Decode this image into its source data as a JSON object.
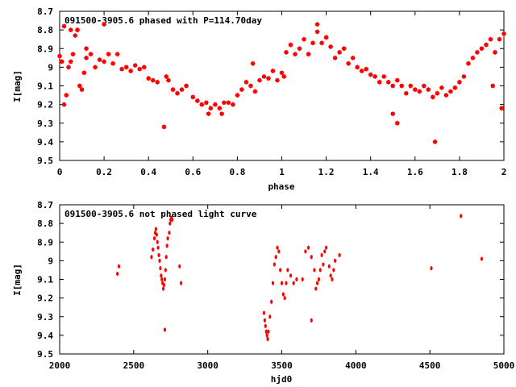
{
  "chart_data": [
    {
      "type": "scatter",
      "title": "091500-3905.6 phased with P=114.70day",
      "xlabel": "phase",
      "ylabel": "I[mag]",
      "xlim": [
        0,
        2
      ],
      "ylim": [
        8.7,
        9.5
      ],
      "y_inverted": true,
      "xticks": [
        0,
        0.2,
        0.4,
        0.6,
        0.8,
        1,
        1.2,
        1.4,
        1.6,
        1.8,
        2
      ],
      "yticks": [
        8.7,
        8.8,
        8.9,
        9,
        9.1,
        9.2,
        9.3,
        9.4,
        9.5
      ],
      "marker_color": "#ff0000",
      "series": [
        {
          "x": [
            0.0,
            0.01,
            0.02,
            0.03,
            0.04,
            0.05,
            0.06,
            0.07,
            0.08,
            0.09,
            0.1,
            0.11,
            0.12,
            0.14,
            0.16,
            0.18,
            0.2,
            0.22,
            0.24,
            0.26,
            0.28,
            0.3,
            0.32,
            0.34,
            0.36,
            0.38,
            0.4,
            0.42,
            0.44,
            0.47,
            0.49,
            0.51,
            0.53,
            0.55,
            0.57,
            0.6,
            0.62,
            0.64,
            0.66,
            0.68,
            0.7,
            0.72,
            0.74,
            0.76,
            0.78,
            0.8,
            0.82,
            0.84,
            0.86,
            0.88,
            0.9,
            0.92,
            0.94,
            0.96,
            0.98,
            1.0,
            1.02,
            1.04,
            1.06,
            1.08,
            1.1,
            1.12,
            1.14,
            1.16,
            1.18,
            1.2,
            1.22,
            1.24,
            1.26,
            1.28,
            1.3,
            1.32,
            1.34,
            1.36,
            1.38,
            1.4,
            1.42,
            1.44,
            1.46,
            1.48,
            1.5,
            1.52,
            1.54,
            1.56,
            1.58,
            1.6,
            1.62,
            1.64,
            1.66,
            1.68,
            1.7,
            1.72,
            1.74,
            1.76,
            1.78,
            1.8,
            1.82,
            1.84,
            1.86,
            1.88,
            1.9,
            1.92,
            1.94,
            1.96,
            1.98,
            2.0,
            0.02,
            0.05,
            0.08,
            0.12,
            0.2,
            0.48,
            0.67,
            0.73,
            0.87,
            1.01,
            1.16,
            1.5,
            1.52,
            1.69,
            1.95,
            1.99
          ],
          "y": [
            8.94,
            8.97,
            9.2,
            9.15,
            9.0,
            8.97,
            8.93,
            8.83,
            8.8,
            9.1,
            9.12,
            9.03,
            8.95,
            8.93,
            9.0,
            8.96,
            8.97,
            8.93,
            8.98,
            8.93,
            9.01,
            9.0,
            9.02,
            8.99,
            9.01,
            9.0,
            9.06,
            9.07,
            9.08,
            9.32,
            9.07,
            9.12,
            9.14,
            9.12,
            9.1,
            9.16,
            9.18,
            9.2,
            9.19,
            9.22,
            9.2,
            9.22,
            9.19,
            9.19,
            9.2,
            9.15,
            9.12,
            9.08,
            9.1,
            9.13,
            9.07,
            9.05,
            9.06,
            9.02,
            9.07,
            9.03,
            8.92,
            8.88,
            8.93,
            8.9,
            8.85,
            8.93,
            8.87,
            8.81,
            8.87,
            8.84,
            8.89,
            8.95,
            8.92,
            8.9,
            8.98,
            8.95,
            9.0,
            9.02,
            9.01,
            9.04,
            9.05,
            9.08,
            9.05,
            9.08,
            9.1,
            9.07,
            9.1,
            9.14,
            9.1,
            9.12,
            9.13,
            9.1,
            9.12,
            9.16,
            9.14,
            9.11,
            9.15,
            9.13,
            9.11,
            9.08,
            9.05,
            8.98,
            8.95,
            8.92,
            8.9,
            8.88,
            8.85,
            8.92,
            8.85,
            8.82,
            8.78,
            8.8,
            8.8,
            8.9,
            8.77,
            9.05,
            9.25,
            9.25,
            8.98,
            9.05,
            8.77,
            9.25,
            9.3,
            9.4,
            9.1,
            9.22
          ],
          "marker": "star"
        }
      ]
    },
    {
      "type": "scatter",
      "title": "091500-3905.6 not phased light curve",
      "xlabel": "hjd0",
      "ylabel": "I[mag]",
      "xlim": [
        2000,
        5000
      ],
      "ylim": [
        8.7,
        9.5
      ],
      "y_inverted": true,
      "xticks": [
        2000,
        2500,
        3000,
        3500,
        4000,
        4500,
        5000
      ],
      "yticks": [
        8.7,
        8.8,
        8.9,
        9,
        9.1,
        9.2,
        9.3,
        9.4,
        9.5
      ],
      "marker_color": "#ff0000",
      "series": [
        {
          "x": [
            2390,
            2400,
            2620,
            2630,
            2640,
            2645,
            2650,
            2655,
            2660,
            2665,
            2670,
            2675,
            2680,
            2685,
            2690,
            2695,
            2700,
            2705,
            2710,
            2715,
            2720,
            2725,
            2730,
            2740,
            2745,
            2750,
            2755,
            2760,
            2810,
            2820,
            3380,
            3385,
            3390,
            3395,
            3400,
            3405,
            3410,
            3420,
            3430,
            3440,
            3450,
            3460,
            3470,
            3480,
            3490,
            3500,
            3510,
            3520,
            3530,
            3540,
            3560,
            3580,
            3600,
            3640,
            3660,
            3680,
            3700,
            3720,
            3730,
            3740,
            3750,
            3760,
            3770,
            3780,
            3790,
            3800,
            3820,
            3830,
            3840,
            3850,
            3860,
            3890,
            4510,
            4710,
            4850,
            3700,
            2710
          ],
          "y": [
            9.07,
            9.03,
            8.98,
            8.94,
            8.88,
            8.85,
            8.83,
            8.86,
            8.9,
            8.93,
            8.97,
            9.0,
            9.04,
            9.08,
            9.1,
            9.12,
            9.15,
            9.13,
            9.1,
            9.05,
            8.98,
            8.92,
            8.88,
            8.85,
            8.8,
            8.78,
            8.77,
            8.78,
            9.03,
            9.12,
            9.28,
            9.32,
            9.35,
            9.38,
            9.4,
            9.42,
            9.38,
            9.3,
            9.22,
            9.12,
            9.02,
            8.98,
            8.93,
            8.95,
            9.05,
            9.12,
            9.18,
            9.2,
            9.12,
            9.05,
            9.08,
            9.12,
            9.1,
            9.1,
            8.95,
            8.93,
            8.98,
            9.05,
            9.15,
            9.12,
            9.1,
            9.05,
            8.97,
            9.02,
            8.95,
            8.93,
            9.03,
            9.08,
            9.1,
            9.05,
            9.0,
            8.97,
            9.04,
            8.76,
            8.99,
            9.32,
            9.37
          ],
          "marker": "dot"
        }
      ]
    }
  ]
}
